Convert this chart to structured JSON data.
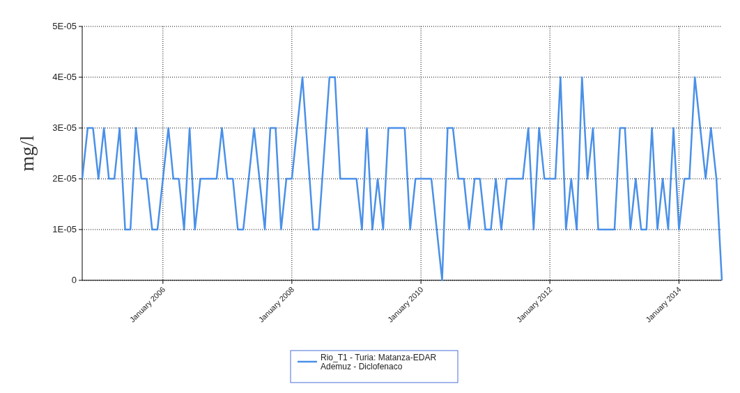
{
  "chart_data": {
    "type": "line",
    "ylabel": "mg/l",
    "x": [
      "2004-10",
      "2004-11",
      "2004-12",
      "2005-01",
      "2005-02",
      "2005-03",
      "2005-04",
      "2005-05",
      "2005-06",
      "2005-07",
      "2005-08",
      "2005-09",
      "2005-10",
      "2005-11",
      "2005-12",
      "2006-02",
      "2006-03",
      "2006-04",
      "2006-05",
      "2006-06",
      "2006-07",
      "2006-08",
      "2006-11",
      "2006-12",
      "2007-01",
      "2007-02",
      "2007-03",
      "2007-04",
      "2007-06",
      "2007-08",
      "2007-09",
      "2007-10",
      "2007-11",
      "2007-12",
      "2008-01",
      "2008-03",
      "2008-05",
      "2008-06",
      "2008-08",
      "2008-09",
      "2008-10",
      "2009-01",
      "2009-02",
      "2009-03",
      "2009-04",
      "2009-05",
      "2009-06",
      "2009-07",
      "2009-10",
      "2009-11",
      "2009-12",
      "2010-03",
      "2010-05",
      "2010-06",
      "2010-07",
      "2010-08",
      "2010-09",
      "2010-10",
      "2010-11",
      "2010-12",
      "2011-01",
      "2011-02",
      "2011-03",
      "2011-04",
      "2011-05",
      "2011-08",
      "2011-09",
      "2011-10",
      "2011-11",
      "2011-12",
      "2012-02",
      "2012-03",
      "2012-04",
      "2012-05",
      "2012-06",
      "2012-07",
      "2012-08",
      "2012-09",
      "2012-10",
      "2013-01",
      "2013-02",
      "2013-03",
      "2013-04",
      "2013-05",
      "2013-06",
      "2013-07",
      "2013-08",
      "2013-09",
      "2013-10",
      "2013-11",
      "2013-12",
      "2014-01",
      "2014-02",
      "2014-03",
      "2014-04",
      "2014-06",
      "2014-07",
      "2014-08",
      "2014-09"
    ],
    "series": [
      {
        "name": "Rio_T1 - Turia: Matanza-EDAR Ademuz - Diclofenaco",
        "color": "#4a90e8",
        "values": [
          2e-05,
          3e-05,
          3e-05,
          2e-05,
          3e-05,
          2e-05,
          2e-05,
          3e-05,
          1e-05,
          1e-05,
          3e-05,
          2e-05,
          2e-05,
          1e-05,
          1e-05,
          3e-05,
          2e-05,
          2e-05,
          1e-05,
          3e-05,
          1e-05,
          2e-05,
          2e-05,
          3e-05,
          2e-05,
          2e-05,
          1e-05,
          1e-05,
          3e-05,
          1e-05,
          3e-05,
          3e-05,
          1e-05,
          2e-05,
          2e-05,
          4e-05,
          1e-05,
          1e-05,
          4e-05,
          4e-05,
          2e-05,
          2e-05,
          1e-05,
          3e-05,
          1e-05,
          2e-05,
          1e-05,
          3e-05,
          3e-05,
          1e-05,
          2e-05,
          2e-05,
          0,
          3e-05,
          3e-05,
          2e-05,
          2e-05,
          1e-05,
          2e-05,
          2e-05,
          1e-05,
          1e-05,
          2e-05,
          1e-05,
          2e-05,
          2e-05,
          3e-05,
          1e-05,
          3e-05,
          2e-05,
          2e-05,
          4e-05,
          1e-05,
          2e-05,
          1e-05,
          4e-05,
          2e-05,
          3e-05,
          1e-05,
          1e-05,
          3e-05,
          3e-05,
          1e-05,
          2e-05,
          1e-05,
          1e-05,
          3e-05,
          1e-05,
          2e-05,
          1e-05,
          3e-05,
          1e-05,
          2e-05,
          2e-05,
          4e-05,
          2e-05,
          3e-05,
          2e-05,
          0
        ]
      }
    ],
    "xlim": [
      "2004-10",
      "2014-09"
    ],
    "xticks": [
      {
        "value": "2006-01",
        "label": "January 2006"
      },
      {
        "value": "2008-01",
        "label": "January 2008"
      },
      {
        "value": "2010-01",
        "label": "January 2010"
      },
      {
        "value": "2012-01",
        "label": "January 2012"
      },
      {
        "value": "2014-01",
        "label": "January 2014"
      }
    ],
    "ylim": [
      0,
      5e-05
    ],
    "yticks": [
      0,
      {
        "value": 1e-05,
        "label": "1E-05"
      },
      {
        "value": 2e-05,
        "label": "2E-05"
      },
      {
        "value": 3e-05,
        "label": "3E-05"
      },
      {
        "value": 4e-05,
        "label": "4E-05"
      },
      {
        "value": 5e-05,
        "label": "5E-05"
      }
    ],
    "grid": true,
    "legend": "bottom",
    "line_style": "solid"
  }
}
